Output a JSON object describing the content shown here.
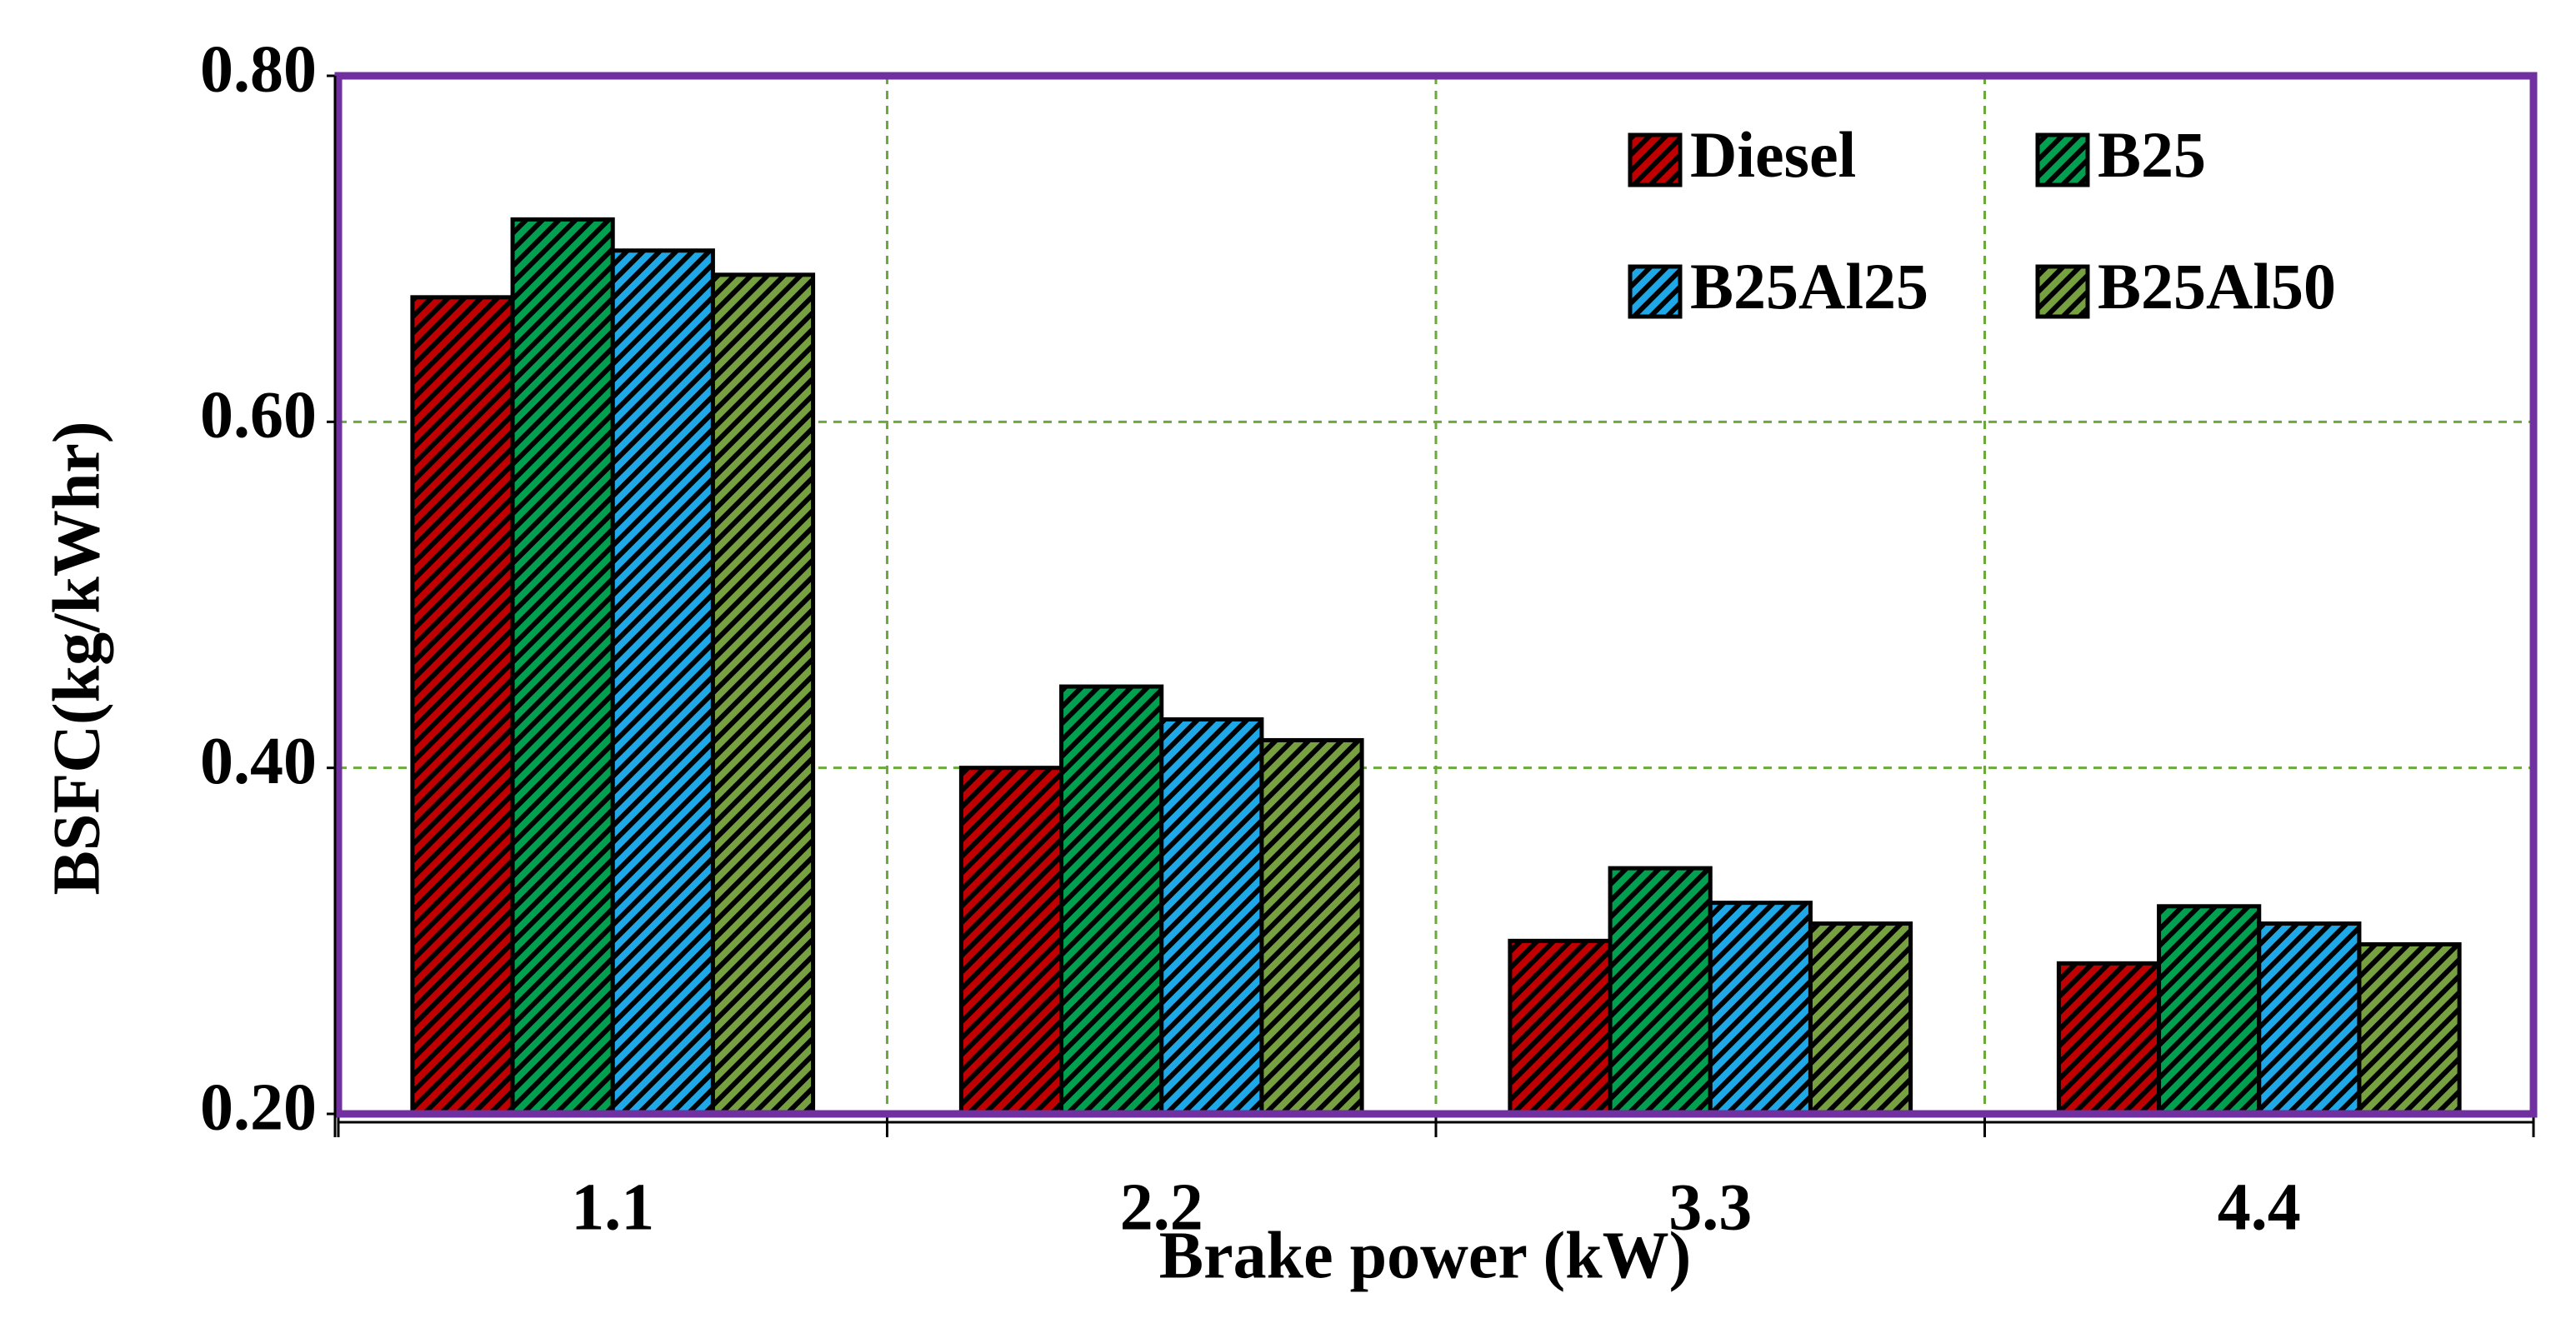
{
  "chart_data": {
    "type": "bar",
    "x_label": "Brake power (kW)",
    "y_label": "BSFC(kg/kWhr)",
    "categories": [
      "1.1",
      "2.2",
      "3.3",
      "4.4"
    ],
    "series": [
      {
        "name": "Diesel",
        "color": "#c00000",
        "values": [
          0.672,
          0.4,
          0.3,
          0.287
        ]
      },
      {
        "name": "B25",
        "color": "#00a050",
        "values": [
          0.717,
          0.447,
          0.342,
          0.32
        ]
      },
      {
        "name": "B25Al25",
        "color": "#1ea8e8",
        "values": [
          0.699,
          0.428,
          0.322,
          0.31
        ]
      },
      {
        "name": "B25Al50",
        "color": "#77a040",
        "values": [
          0.685,
          0.416,
          0.31,
          0.298
        ]
      }
    ],
    "ylim": [
      0.2,
      0.8
    ],
    "yticks": [
      {
        "value": 0.2,
        "label": "0.20"
      },
      {
        "value": 0.4,
        "label": "0.40"
      },
      {
        "value": 0.6,
        "label": "0.60"
      },
      {
        "value": 0.8,
        "label": "0.80"
      }
    ],
    "grid": true,
    "legend": "upper right",
    "frame_color": "#7030a0",
    "grid_color": "#6aaa3a"
  }
}
